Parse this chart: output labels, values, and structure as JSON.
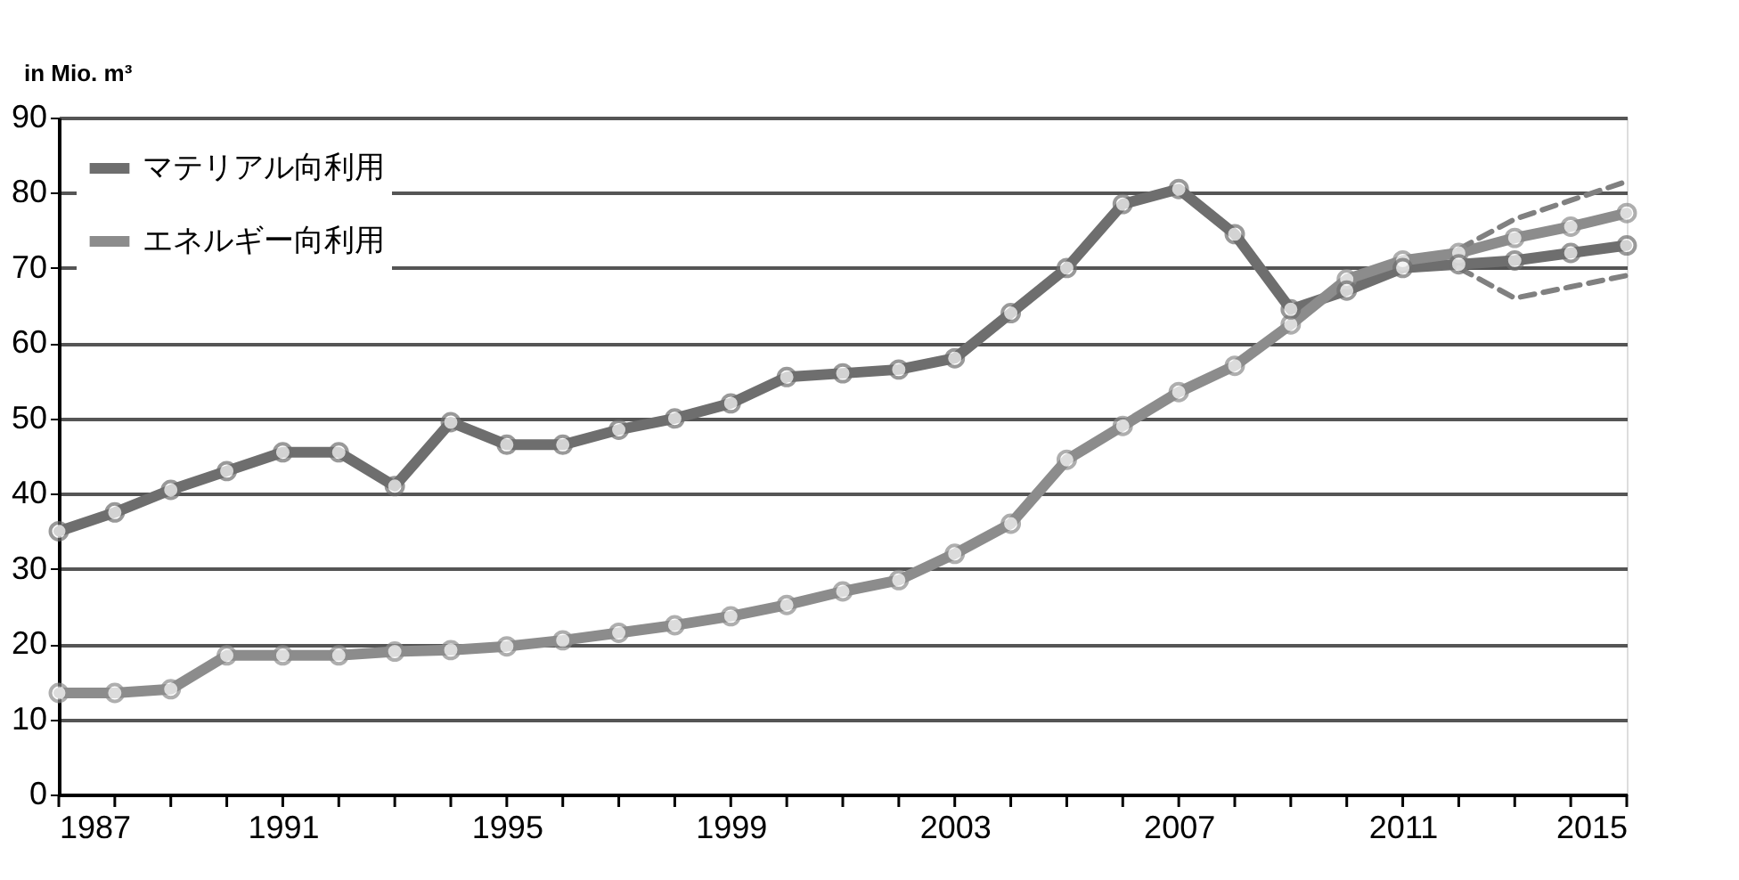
{
  "chart_data": {
    "type": "line",
    "ylabel": "in Mio. m³",
    "x": [
      1987,
      1988,
      1989,
      1990,
      1991,
      1992,
      1993,
      1994,
      1995,
      1996,
      1997,
      1998,
      1999,
      2000,
      2001,
      2002,
      2003,
      2004,
      2005,
      2006,
      2007,
      2008,
      2009,
      2010,
      2011,
      2012,
      2013,
      2014,
      2015
    ],
    "series": [
      {
        "name": "マテリアル向利用",
        "color": "#6e6e6e",
        "values": [
          35,
          37.5,
          40.5,
          43,
          45.5,
          45.5,
          41,
          49.5,
          46.5,
          46.5,
          48.5,
          50,
          52,
          55.5,
          56,
          56.5,
          58,
          64,
          70,
          78.5,
          80.5,
          74.5,
          64.5,
          67,
          70,
          70.5,
          71,
          72,
          73
        ]
      },
      {
        "name": "エネルギー向利用",
        "color": "#8c8c8c",
        "values": [
          13.5,
          13.5,
          14,
          18.5,
          18.5,
          18.5,
          19,
          19.2,
          19.7,
          20.5,
          21.5,
          22.5,
          23.7,
          25.2,
          27,
          28.5,
          32,
          36,
          44.5,
          49,
          53.5,
          57,
          62.5,
          68.5,
          71,
          72,
          74,
          75.5,
          77.3
        ]
      },
      {
        "color": "#808080",
        "line_style": "dashed",
        "marker": "none",
        "x": [
          2012,
          2013,
          2014,
          2015
        ],
        "values": [
          72.5,
          76.5,
          79,
          81.5
        ]
      },
      {
        "color": "#808080",
        "line_style": "dashed",
        "marker": "none",
        "x": [
          2012,
          2013,
          2014,
          2015
        ],
        "values": [
          70,
          66,
          67.5,
          69
        ]
      }
    ],
    "xlim": [
      1987,
      2015
    ],
    "xticks": [
      1987,
      {
        "value": 1988,
        "label": null
      },
      {
        "value": 1989,
        "label": null
      },
      {
        "value": 1990,
        "label": null
      },
      1991,
      {
        "value": 1992,
        "label": null
      },
      {
        "value": 1993,
        "label": null
      },
      {
        "value": 1994,
        "label": null
      },
      1995,
      {
        "value": 1996,
        "label": null
      },
      {
        "value": 1997,
        "label": null
      },
      {
        "value": 1998,
        "label": null
      },
      1999,
      {
        "value": 2000,
        "label": null
      },
      {
        "value": 2001,
        "label": null
      },
      {
        "value": 2002,
        "label": null
      },
      2003,
      {
        "value": 2004,
        "label": null
      },
      {
        "value": 2005,
        "label": null
      },
      {
        "value": 2006,
        "label": null
      },
      2007,
      {
        "value": 2008,
        "label": null
      },
      {
        "value": 2009,
        "label": null
      },
      {
        "value": 2010,
        "label": null
      },
      2011,
      {
        "value": 2012,
        "label": null
      },
      {
        "value": 2013,
        "label": null
      },
      {
        "value": 2014,
        "label": null
      },
      2015
    ],
    "ylim": [
      0,
      90
    ],
    "yticks": [
      0,
      10,
      20,
      30,
      40,
      50,
      60,
      70,
      80,
      90
    ],
    "grid": "y",
    "legend": "top left",
    "marker": "circle",
    "line_style": "solid"
  }
}
